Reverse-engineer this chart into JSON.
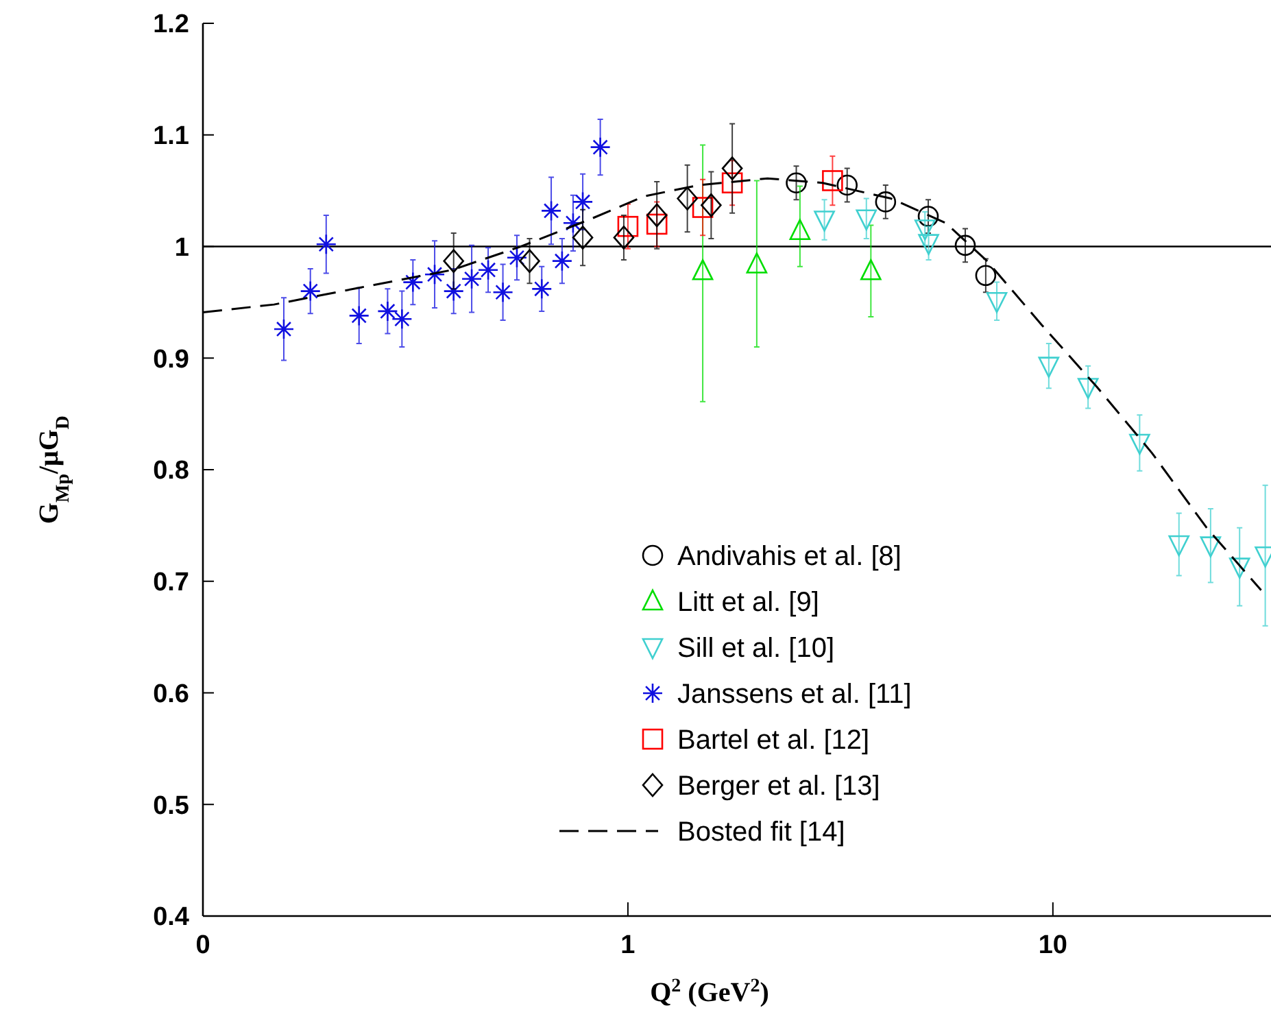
{
  "chart_data": {
    "type": "scatter",
    "xlabel": "Q$^{2}$ (GeV$^{2}$)",
    "ylabel": "G$_{Mp}$/μG$_{D}$",
    "log": "x",
    "xlim": [
      0.1,
      32.6
    ],
    "xticks": [
      {
        "value": 0.1,
        "label": "0"
      },
      1,
      10
    ],
    "ylim": [
      0.4,
      1.2
    ],
    "yticks": [
      0.4,
      0.5,
      0.6,
      0.7,
      0.8,
      0.9,
      1,
      1.1,
      1.2
    ],
    "grid": false,
    "legend": "bottom right",
    "ref_lines": [
      {
        "axis": "y",
        "value": 1,
        "color": "#000000"
      }
    ],
    "series": [
      {
        "name": "Andivahis et al. [8]",
        "color": "#000000",
        "marker": "circle",
        "x": [
          2.49,
          3.28,
          4.04,
          5.09,
          6.22,
          6.95
        ],
        "values": [
          1.057,
          1.055,
          1.04,
          1.027,
          1.001,
          0.974
        ],
        "errors": [
          0.015,
          0.015,
          0.015,
          0.015,
          0.015,
          0.015
        ]
      },
      {
        "name": "Litt et al. [9]",
        "color": "#00dd00",
        "marker": "triangle",
        "x": [
          1.5,
          2.01,
          2.54,
          3.73
        ],
        "values": [
          0.978,
          0.984,
          1.014,
          0.978
        ],
        "errors": [
          [
            0.861,
            1.091
          ],
          [
            0.91,
            1.059
          ],
          [
            0.982,
            1.054
          ],
          [
            0.937,
            1.019
          ]
        ]
      },
      {
        "name": "Sill et al. [10]",
        "color": "#40d0d0",
        "marker": "triangle_down",
        "x": [
          2.9,
          3.64,
          5.0,
          5.1,
          7.38,
          9.78,
          12.1,
          16.0,
          19.8,
          23.5,
          27.5,
          31.6
        ],
        "values": [
          1.024,
          1.025,
          1.016,
          1.003,
          0.951,
          0.893,
          0.874,
          0.824,
          0.733,
          0.732,
          0.713,
          0.723
        ],
        "errors": [
          0.018,
          0.018,
          0.015,
          0.015,
          0.017,
          0.02,
          0.019,
          0.025,
          0.028,
          0.033,
          0.035,
          0.063
        ]
      },
      {
        "name": "Janssens et al. [11]",
        "color": "#1010e0",
        "marker": "cross",
        "x": [
          0.155,
          0.179,
          0.195,
          0.233,
          0.272,
          0.294,
          0.312,
          0.351,
          0.389,
          0.429,
          0.469,
          0.508,
          0.548,
          0.627,
          0.66,
          0.7,
          0.743,
          0.783,
          0.861
        ],
        "values": [
          0.926,
          0.96,
          1.002,
          0.938,
          0.942,
          0.935,
          0.968,
          0.975,
          0.96,
          0.971,
          0.979,
          0.959,
          0.99,
          0.962,
          1.032,
          0.987,
          1.021,
          1.04,
          1.089
        ],
        "errors": [
          0.028,
          0.02,
          0.026,
          0.025,
          0.02,
          0.025,
          0.02,
          0.03,
          0.02,
          0.03,
          0.02,
          0.025,
          0.02,
          0.02,
          0.03,
          0.02,
          0.025,
          0.025,
          0.025
        ]
      },
      {
        "name": "Bartel et al. [12]",
        "color": "#ff0000",
        "marker": "square",
        "x": [
          1.0,
          1.17,
          1.5,
          1.76,
          3.03
        ],
        "values": [
          1.018,
          1.02,
          1.035,
          1.057,
          1.059
        ],
        "errors": [
          0.02,
          0.02,
          0.025,
          0.02,
          0.022
        ]
      },
      {
        "name": "Berger et al. [13]",
        "color": "#000000",
        "marker": "diamond",
        "x": [
          0.389,
          0.587,
          0.783,
          0.978,
          1.17,
          1.38,
          1.57,
          1.76
        ],
        "values": [
          0.987,
          0.987,
          1.008,
          1.008,
          1.028,
          1.043,
          1.037,
          1.07
        ],
        "errors": [
          0.025,
          0.02,
          0.025,
          0.02,
          0.03,
          0.03,
          0.03,
          0.04
        ]
      },
      {
        "name": "Bosted fit [14]",
        "type": "line",
        "color": "#000000",
        "line_style": "dashed",
        "marker": "none",
        "x": [
          0.1,
          0.147,
          0.233,
          0.386,
          0.56,
          0.81,
          1.093,
          1.47,
          2.13,
          2.87,
          4.16,
          5.6,
          7.0,
          9.4,
          12.7,
          17.1,
          23.0,
          30.9
        ],
        "values": [
          0.941,
          0.948,
          0.963,
          0.979,
          1.0,
          1.024,
          1.045,
          1.055,
          1.061,
          1.057,
          1.043,
          1.021,
          0.987,
          0.93,
          0.874,
          0.815,
          0.748,
          0.692
        ]
      }
    ]
  }
}
